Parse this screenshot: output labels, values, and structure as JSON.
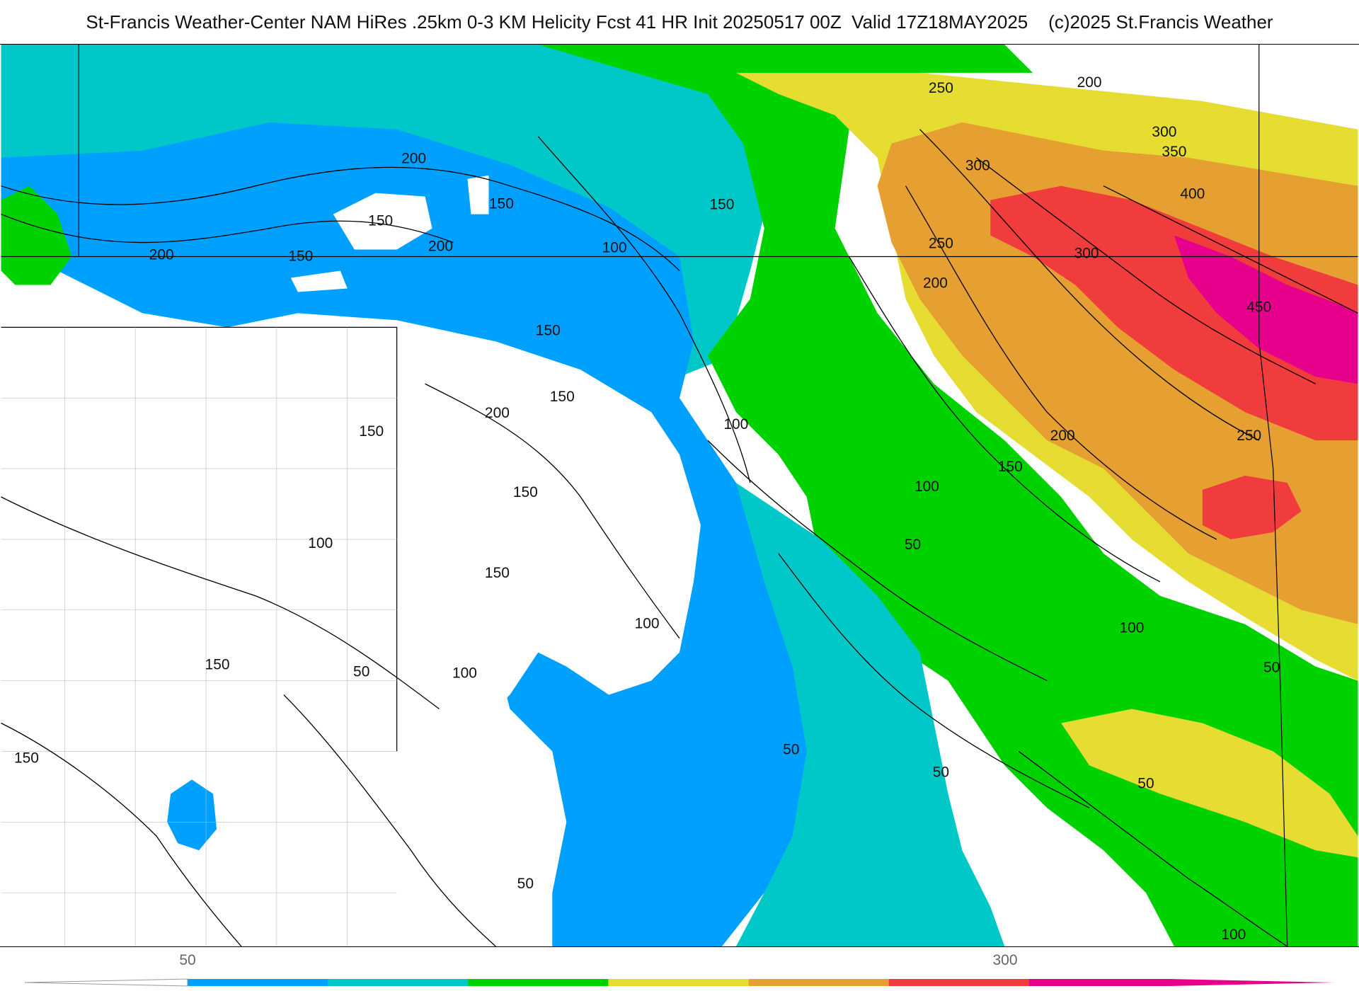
{
  "title": "St-Francis Weather-Center NAM HiRes .25km 0-3 KM Helicity Fcst 41 HR Init 20250517 00Z  Valid 17Z18MAY2025    (c)2025 St.Francis Weather",
  "colors": {
    "below50": "#ffffff",
    "c50": "#00a0ff",
    "c100": "#00c8c8",
    "c150": "#00d200",
    "c200": "#e6dc32",
    "c250": "#e6a032",
    "c300": "#f03c3c",
    "c400": "#e6008c"
  },
  "contour_labels": [
    "50",
    "100",
    "150",
    "200",
    "250",
    "300",
    "350",
    "400",
    "450"
  ],
  "colorbar": {
    "label_low": "50",
    "label_high": "300",
    "segments": [
      "#00a0ff",
      "#00c8c8",
      "#00d200",
      "#e6dc32",
      "#e6a032",
      "#f03c3c",
      "#e6008c"
    ]
  }
}
